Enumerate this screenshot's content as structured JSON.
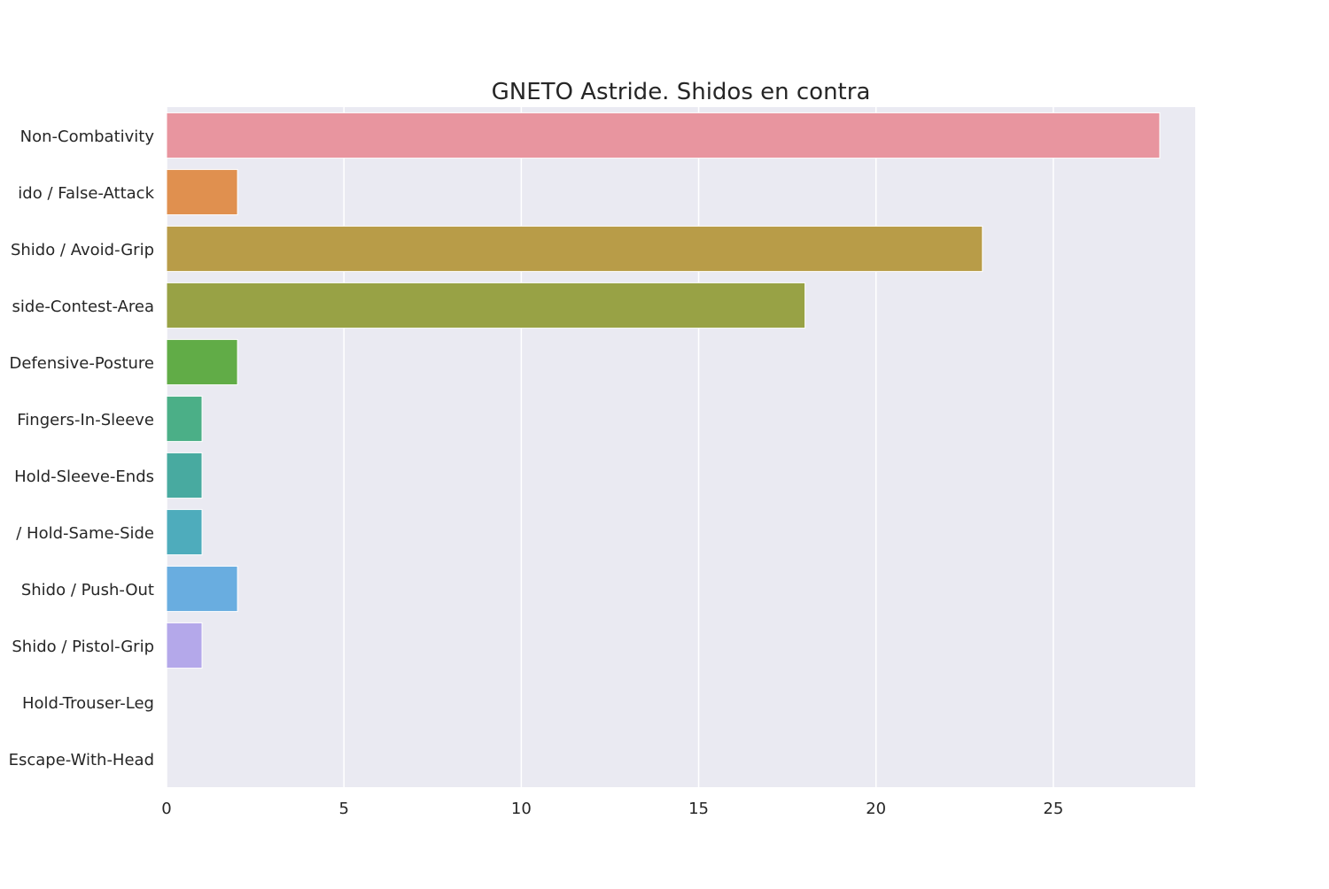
{
  "colors": {
    "background": "#eaeaf2",
    "grid": "#ffffff",
    "text": "#262626",
    "bar_palette": [
      "#e8959f",
      "#e0904f",
      "#b89c48",
      "#98a245",
      "#61ac47",
      "#4baf87",
      "#48aaa0",
      "#4eacbc",
      "#69ade0",
      "#b4a8ea",
      "#e396e6",
      "#eb93c5"
    ]
  },
  "chart_data": {
    "type": "bar",
    "orientation": "horizontal",
    "title": "GNETO Astride. Shidos en contra",
    "xlabel": "",
    "ylabel": "",
    "xlim": [
      0,
      29
    ],
    "xticks": [
      0,
      5,
      10,
      15,
      20,
      25
    ],
    "grid": true,
    "categories": [
      "Non-Combativity",
      "ido / False-Attack",
      "Shido / Avoid-Grip",
      "side-Contest-Area",
      "Defensive-Posture",
      "Fingers-In-Sleeve",
      "Hold-Sleeve-Ends",
      "/ Hold-Same-Side",
      "Shido / Push-Out",
      "Shido / Pistol-Grip",
      "Hold-Trouser-Leg",
      "Escape-With-Head"
    ],
    "values": [
      28,
      2,
      23,
      18,
      2,
      1,
      1,
      1,
      2,
      1,
      0,
      0
    ]
  }
}
